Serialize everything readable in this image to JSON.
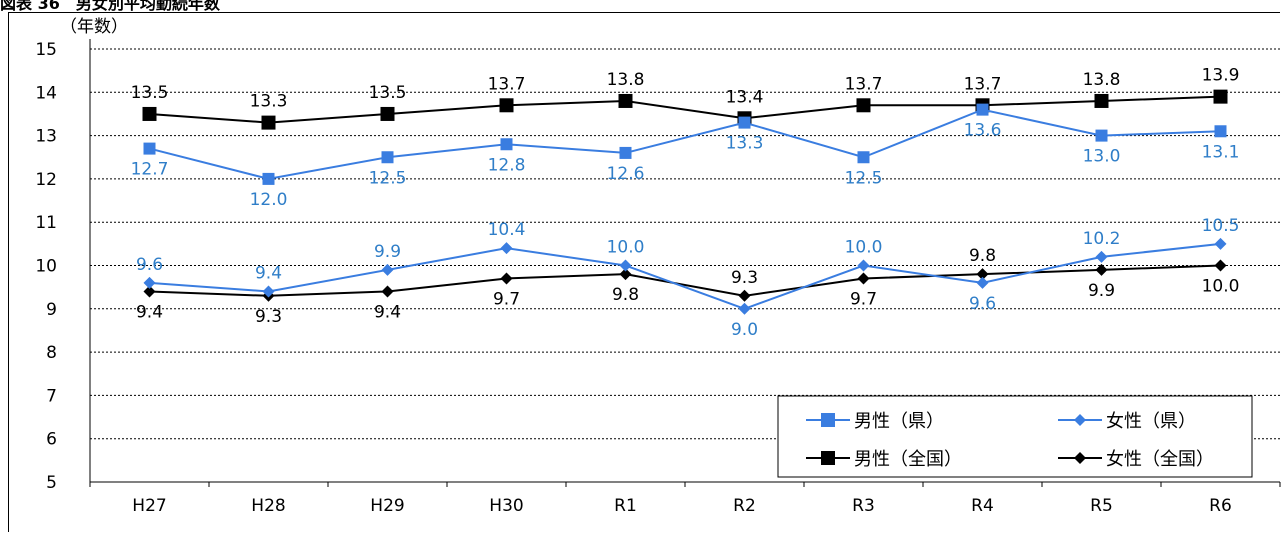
{
  "caption": "図表 36　男女別平均勤続年数",
  "chart_data": {
    "type": "line",
    "ylabel": "（年数）",
    "ylim": [
      5,
      15
    ],
    "yticks": [
      5,
      6,
      7,
      8,
      9,
      10,
      11,
      12,
      13,
      14,
      15
    ],
    "grid": "dotted horizontal",
    "categories": [
      "H27",
      "H28",
      "H29",
      "H30",
      "R1",
      "R2",
      "R3",
      "R4",
      "R5",
      "R6"
    ],
    "legend_position": "bottom-right",
    "series": [
      {
        "name": "男性（県）",
        "color": "#3a7de0",
        "label_color": "#2f7ec8",
        "marker": "square-small",
        "values": [
          12.7,
          12.0,
          12.5,
          12.8,
          12.6,
          13.3,
          12.5,
          13.6,
          13.0,
          13.1
        ],
        "labels": [
          "12.7",
          "12.0",
          "12.5",
          "12.8",
          "12.6",
          "13.3",
          "12.5",
          "13.6",
          "13.0",
          "13.1"
        ]
      },
      {
        "name": "女性（県）",
        "color": "#3a7de0",
        "label_color": "#2f7ec8",
        "marker": "diamond",
        "values": [
          9.6,
          9.4,
          9.9,
          10.4,
          10.0,
          9.0,
          10.0,
          9.6,
          10.2,
          10.5
        ],
        "labels": [
          "9.6",
          "9.4",
          "9.9",
          "10.4",
          "10.0",
          "9.0",
          "10.0",
          "9.6",
          "10.2",
          "10.5"
        ]
      },
      {
        "name": "男性（全国）",
        "color": "#000000",
        "label_color": "#000000",
        "marker": "square",
        "values": [
          13.5,
          13.3,
          13.5,
          13.7,
          13.8,
          13.4,
          13.7,
          13.7,
          13.8,
          13.9
        ],
        "labels": [
          "13.5",
          "13.3",
          "13.5",
          "13.7",
          "13.8",
          "13.4",
          "13.7",
          "13.7",
          "13.8",
          "13.9"
        ]
      },
      {
        "name": "女性（全国）",
        "color": "#000000",
        "label_color": "#000000",
        "marker": "diamond",
        "values": [
          9.4,
          9.3,
          9.4,
          9.7,
          9.8,
          9.3,
          9.7,
          9.8,
          9.9,
          10.0
        ],
        "labels": [
          "9.4",
          "9.3",
          "9.4",
          "9.7",
          "9.8",
          "9.3",
          "9.7",
          "9.8",
          "9.9",
          "10.0"
        ]
      }
    ]
  }
}
